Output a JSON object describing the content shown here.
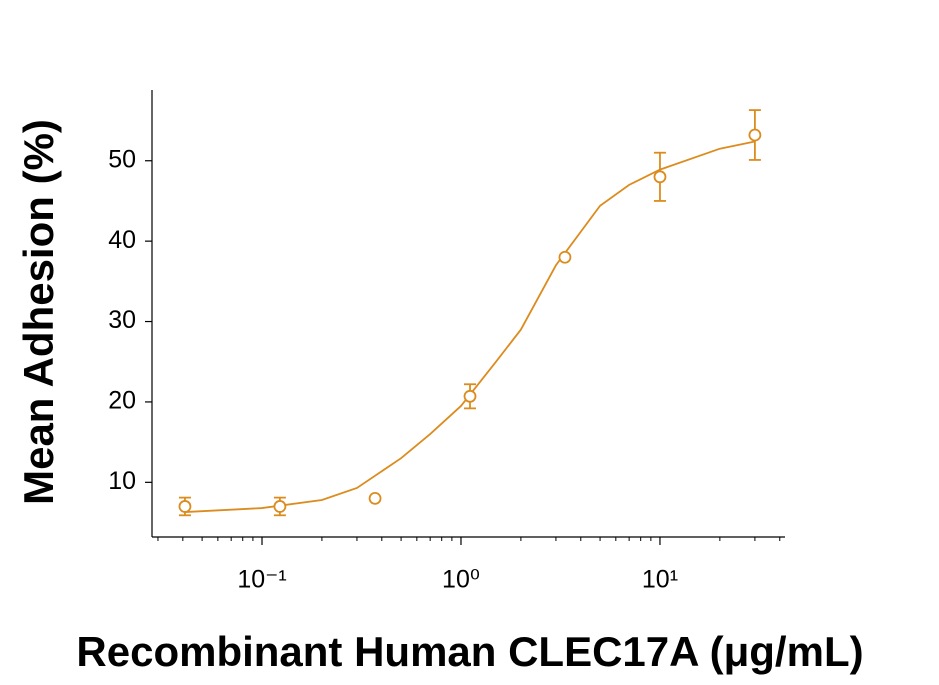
{
  "chart_data": {
    "type": "scatter",
    "x_label": "Recombinant Human CLEC17A (μg/mL)",
    "y_label": "Mean Adhesion (%)",
    "color": "#dc8c1e",
    "xscale": "log",
    "xlim": [
      0.028,
      42.5
    ],
    "ylim": [
      3.2,
      58.8
    ],
    "xticks": [
      {
        "value": 0.1,
        "label": "10⁻¹"
      },
      {
        "value": 1,
        "label": "10⁰"
      },
      {
        "value": 10,
        "label": "10¹"
      }
    ],
    "xminorticks": [
      0.03,
      0.04,
      0.05,
      0.06,
      0.07,
      0.08,
      0.09,
      0.2,
      0.3,
      0.4,
      0.5,
      0.6,
      0.7,
      0.8,
      0.9,
      2,
      3,
      4,
      5,
      6,
      7,
      8,
      9,
      20,
      30,
      40
    ],
    "yticks": [
      10,
      20,
      30,
      40,
      50
    ],
    "points": {
      "x": [
        0.041,
        0.123,
        0.37,
        1.11,
        3.33,
        10,
        30
      ],
      "values": [
        7.0,
        7.0,
        8.0,
        20.7,
        38.0,
        48.0,
        53.2
      ],
      "errors": [
        1.1,
        1.1,
        null,
        1.5,
        null,
        3.0,
        3.1
      ]
    },
    "curve": {
      "x": [
        0.041,
        0.1,
        0.2,
        0.3,
        0.5,
        0.7,
        1,
        1.5,
        2,
        3,
        5,
        7,
        10,
        20,
        30
      ],
      "values": [
        6.3,
        6.8,
        7.8,
        9.3,
        13,
        16,
        19.5,
        25,
        29,
        37,
        44.4,
        47,
        48.9,
        51.5,
        52.4
      ]
    }
  }
}
